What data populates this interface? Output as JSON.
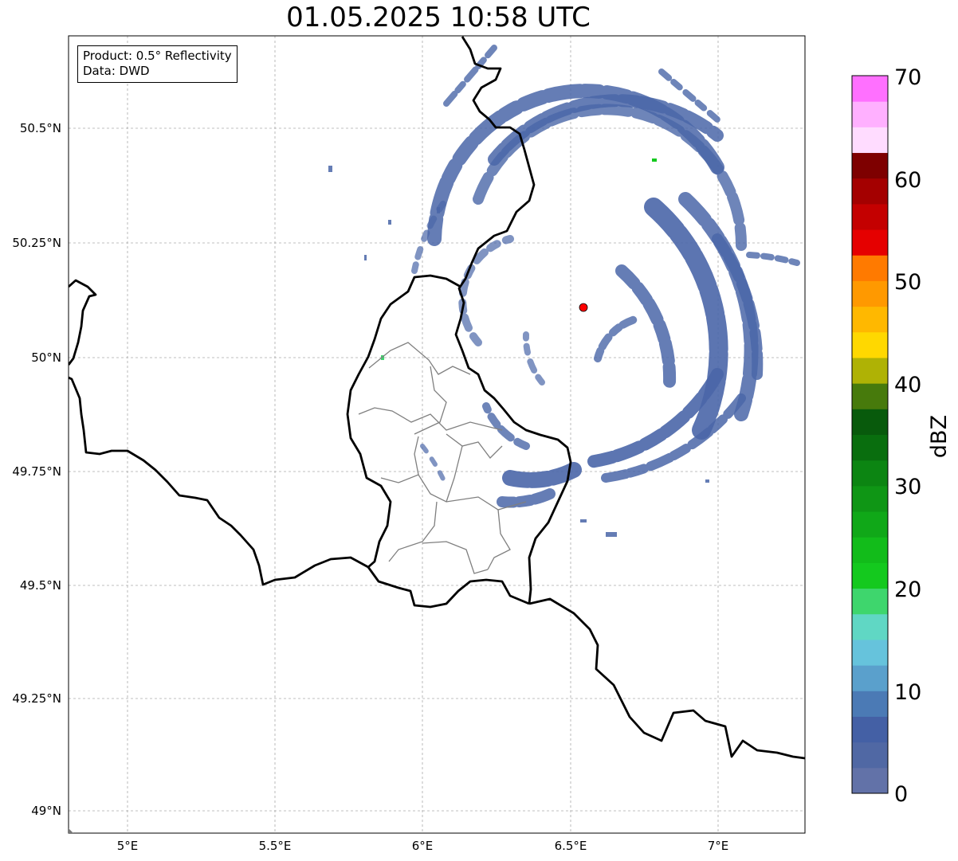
{
  "title": "01.05.2025 10:58 UTC",
  "info": {
    "product": "Product: 0.5° Reflectivity",
    "source": "Data: DWD"
  },
  "lat_ticks": [
    "50.5°N",
    "50.25°N",
    "50°N",
    "49.75°N",
    "49.5°N",
    "49.25°N",
    "49°N"
  ],
  "lon_ticks": [
    "5°E",
    "5.5°E",
    "6°E",
    "6.5°E",
    "7°E"
  ],
  "map_extent": {
    "lon_min": 4.8,
    "lon_max": 7.3,
    "lat_min": 48.95,
    "lat_max": 50.7
  },
  "radar_site": {
    "lon": 6.55,
    "lat": 50.11,
    "color": "#ff0000"
  },
  "colorbar": {
    "label": "dBZ",
    "min": 0,
    "max": 70,
    "step": 2.5,
    "ticks": [
      "70",
      "60",
      "50",
      "40",
      "30",
      "20",
      "10",
      "0"
    ],
    "colors": [
      "#6272a8",
      "#5068a4",
      "#4460a5",
      "#4b7ab5",
      "#5aa0cc",
      "#66c3dc",
      "#60d7c4",
      "#3ed66d",
      "#14c91e",
      "#12bc1a",
      "#10a818",
      "#0f9615",
      "#0c8512",
      "#096e0e",
      "#085a0c",
      "#477a0c",
      "#afb205",
      "#ffd800",
      "#ffb800",
      "#ff9900",
      "#ff7a00",
      "#e50000",
      "#c40000",
      "#a40000",
      "#7e0000",
      "#ffdcff",
      "#ffb0ff",
      "#ff70ff",
      "#e93ae9"
    ]
  },
  "colors": {
    "reflectivity_low": "#4a66a8",
    "border": "#000000",
    "admin": "#7f7f7f"
  }
}
